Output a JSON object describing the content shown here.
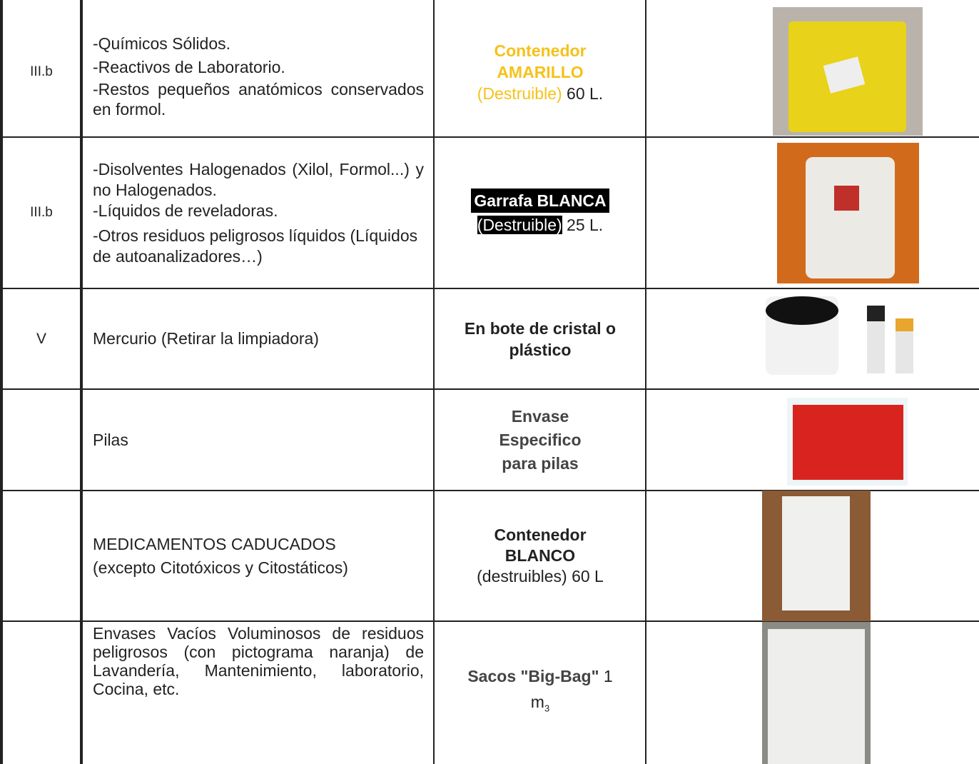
{
  "table": {
    "rows": [
      {
        "class": "III.b",
        "description": [
          "-Químicos Sólidos.",
          "-Reactivos de Laboratorio.",
          "-Restos pequeños anatómicos conservados en formol."
        ],
        "container": [
          "Contenedor",
          "AMARILLO",
          "(Destruible)",
          " 60 L."
        ]
      },
      {
        "class": "III.b",
        "description": [
          "-Disolventes Halogenados (Xilol, Formol...) y no Halogenados.",
          "-Líquidos de reveladoras.",
          "-Otros residuos peligrosos líquidos (Líquidos de autoanalizadores…)"
        ],
        "container": [
          "Garrafa BLANCA",
          "(Destruible)",
          " 25 L."
        ]
      },
      {
        "class": "V",
        "description": [
          "Mercurio (Retirar la limpiadora)"
        ],
        "container": [
          "En bote de cristal o plástico"
        ]
      },
      {
        "description": [
          "Pilas"
        ],
        "container": [
          "Envase",
          "Especifico",
          "para pilas"
        ]
      },
      {
        "description": [
          "MEDICAMENTOS CADUCADOS",
          "(excepto Citotóxicos y Citostáticos)"
        ],
        "container": [
          "Contenedor",
          "BLANCO",
          "(destruibles) 60 L"
        ]
      },
      {
        "description": [
          "Envases Vacíos Voluminosos de residuos peligrosos (con pictograma naranja) de Lavandería, Mantenimiento, laboratorio, Cocina, etc."
        ],
        "container": [
          "Sacos \"Big-Bag\"",
          " 1",
          "m",
          "3"
        ]
      }
    ]
  }
}
